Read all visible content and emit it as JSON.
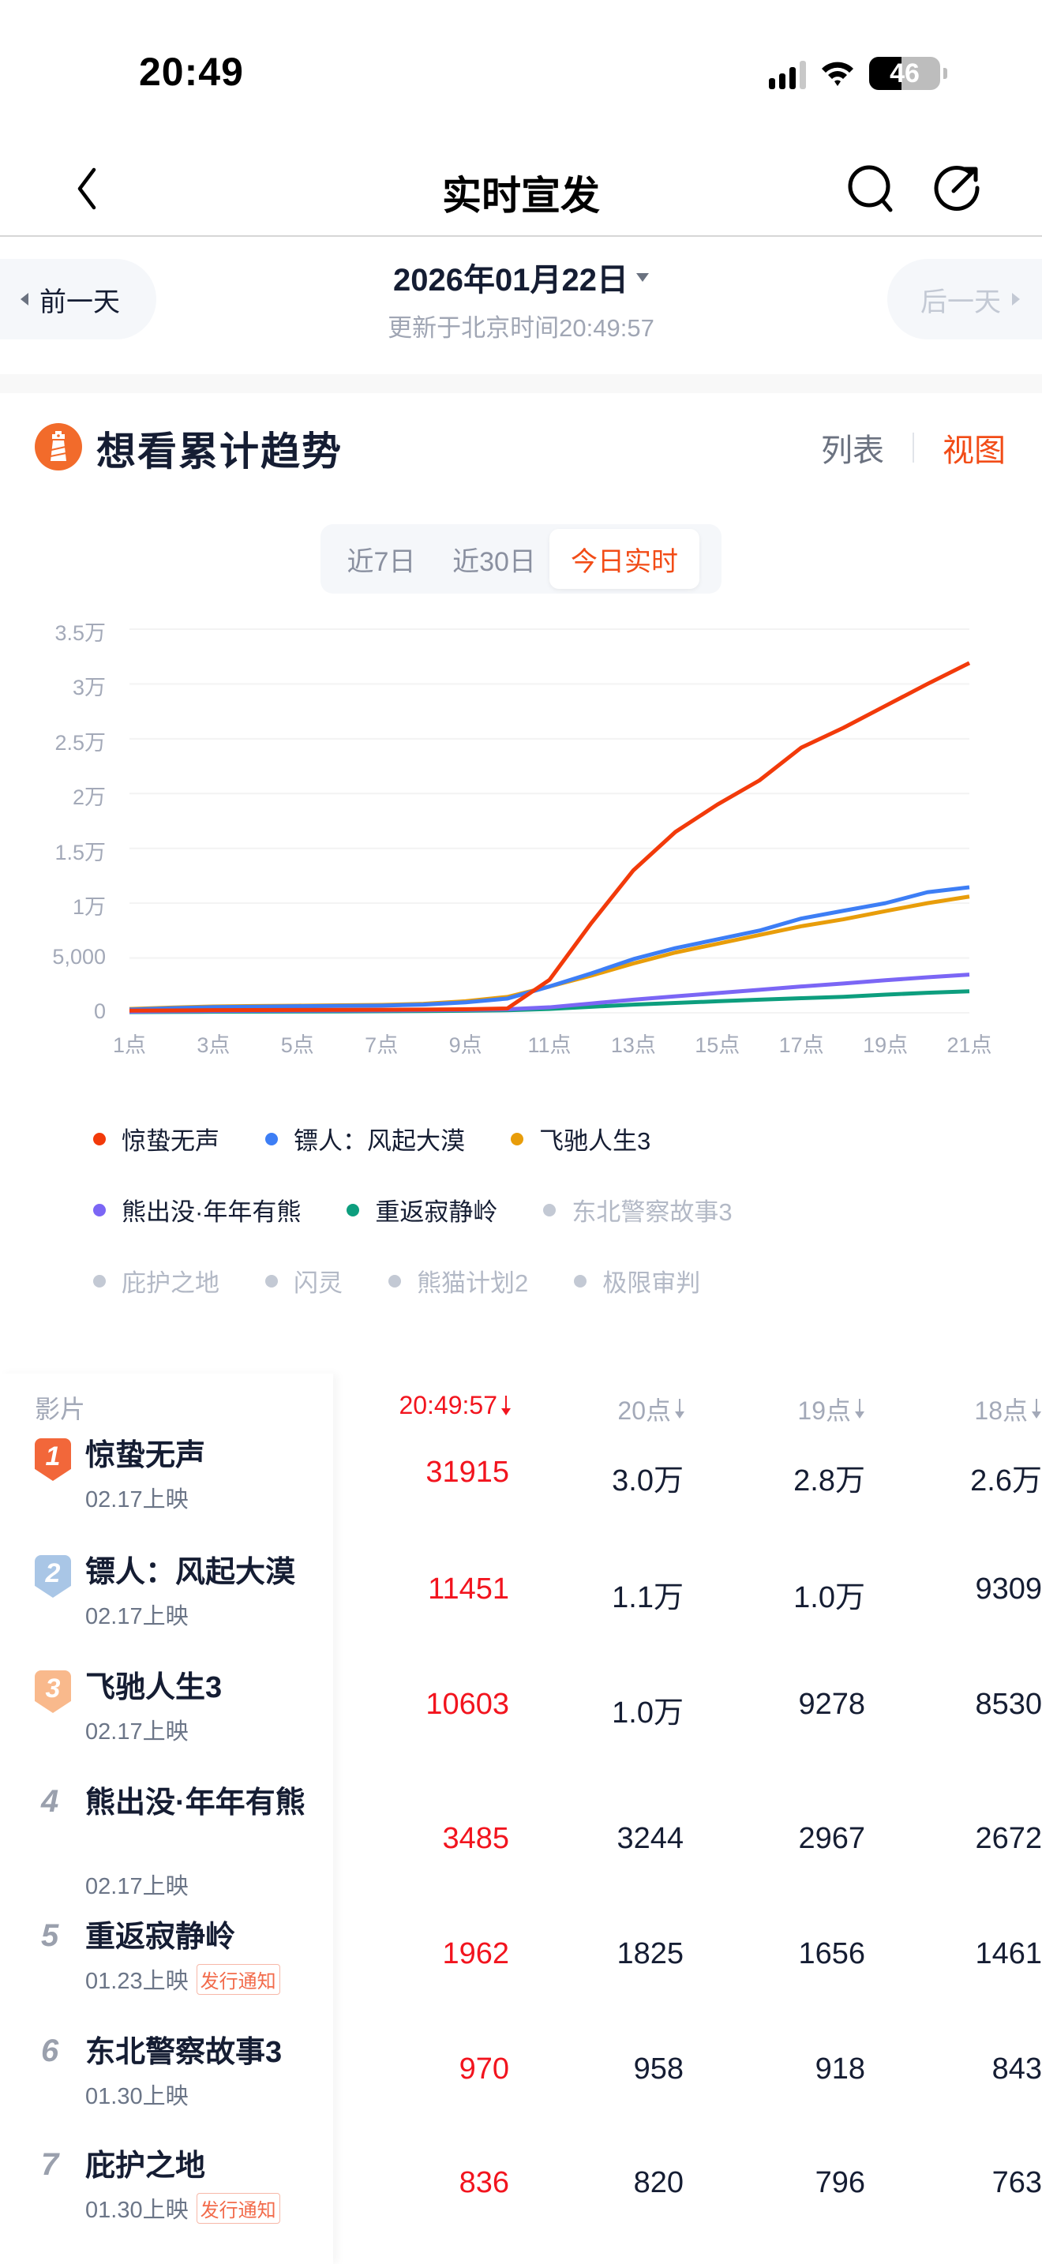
{
  "status_bar": {
    "time": "20:49",
    "battery": "46"
  },
  "nav": {
    "title": "实时宣发",
    "back_icon": "chevron-left-icon",
    "search_icon": "search-icon",
    "share_icon": "share-icon"
  },
  "date_bar": {
    "prev_label": "前一天",
    "next_label": "后一天",
    "date": "2026年01月22日",
    "updated": "更新于北京时间20:49:57"
  },
  "section": {
    "title": "想看累计趋势",
    "icon": "lighthouse-icon",
    "view_list": "列表",
    "view_chart": "视图"
  },
  "range_tabs": [
    {
      "label": "近7日",
      "active": false
    },
    {
      "label": "近30日",
      "active": false
    },
    {
      "label": "今日实时",
      "active": true
    }
  ],
  "legend": [
    {
      "label": "惊蛰无声",
      "color": "#f23a0a",
      "active": true
    },
    {
      "label": "镖人：风起大漠",
      "color": "#3d7ef5",
      "active": true
    },
    {
      "label": "飞驰人生3",
      "color": "#e89d0a",
      "active": true
    },
    {
      "label": "熊出没·年年有熊",
      "color": "#7b66f5",
      "active": true
    },
    {
      "label": "重返寂静岭",
      "color": "#0d9e7e",
      "active": true
    },
    {
      "label": "东北警察故事3",
      "color": "#c3c9d4",
      "active": false
    },
    {
      "label": "庇护之地",
      "color": "#c3c9d4",
      "active": false
    },
    {
      "label": "闪灵",
      "color": "#c3c9d4",
      "active": false
    },
    {
      "label": "熊猫计划2",
      "color": "#c3c9d4",
      "active": false
    },
    {
      "label": "极限审判",
      "color": "#c3c9d4",
      "active": false
    }
  ],
  "chart_data": {
    "type": "line",
    "title": "想看累计趋势",
    "xlabel": "",
    "ylabel": "",
    "x": [
      "1点",
      "2点",
      "3点",
      "4点",
      "5点",
      "6点",
      "7点",
      "8点",
      "9点",
      "10点",
      "11点",
      "12点",
      "13点",
      "14点",
      "15点",
      "16点",
      "17点",
      "18点",
      "19点",
      "20点",
      "21点"
    ],
    "x_tick_labels": [
      "1点",
      "3点",
      "5点",
      "7点",
      "9点",
      "11点",
      "13点",
      "15点",
      "17点",
      "19点",
      "21点"
    ],
    "y_tick_labels": [
      "0",
      "5,000",
      "1万",
      "1.5万",
      "2万",
      "2.5万",
      "3万",
      "3.5万"
    ],
    "ylim": [
      0,
      35000
    ],
    "grid": true,
    "legend_position": "bottom",
    "series": [
      {
        "name": "惊蛰无声",
        "color": "#f23a0a",
        "values": [
          200,
          220,
          240,
          250,
          260,
          270,
          280,
          300,
          320,
          400,
          3000,
          8200,
          13000,
          16500,
          19000,
          21200,
          24200,
          26000,
          28000,
          30000,
          31915
        ]
      },
      {
        "name": "镖人：风起大漠",
        "color": "#3d7ef5",
        "values": [
          300,
          420,
          520,
          560,
          600,
          630,
          660,
          750,
          950,
          1300,
          2400,
          3600,
          4900,
          5900,
          6700,
          7500,
          8600,
          9309,
          10000,
          11000,
          11451
        ]
      },
      {
        "name": "飞驰人生3",
        "color": "#e89d0a",
        "values": [
          350,
          480,
          580,
          620,
          650,
          680,
          720,
          820,
          1050,
          1450,
          2400,
          3400,
          4500,
          5500,
          6300,
          7100,
          7900,
          8530,
          9278,
          10000,
          10603
        ]
      },
      {
        "name": "熊出没·年年有熊",
        "color": "#7b66f5",
        "values": [
          100,
          140,
          170,
          190,
          200,
          210,
          220,
          240,
          270,
          320,
          500,
          850,
          1200,
          1500,
          1800,
          2100,
          2400,
          2672,
          2967,
          3244,
          3485
        ]
      },
      {
        "name": "重返寂静岭",
        "color": "#0d9e7e",
        "values": [
          60,
          80,
          100,
          110,
          120,
          130,
          140,
          160,
          190,
          230,
          350,
          550,
          750,
          900,
          1050,
          1200,
          1330,
          1461,
          1656,
          1825,
          1962
        ]
      }
    ]
  },
  "table": {
    "headers": {
      "film": "影片",
      "cols": [
        "20:49:57",
        "20点",
        "19点",
        "18点"
      ]
    },
    "rows": [
      {
        "rank": "1",
        "name": "惊蛰无声",
        "date": "02.17上映",
        "tag": "",
        "values": [
          "31915",
          "3.0万",
          "2.8万",
          "2.6万"
        ]
      },
      {
        "rank": "2",
        "name": "镖人：风起大漠",
        "date": "02.17上映",
        "tag": "",
        "values": [
          "11451",
          "1.1万",
          "1.0万",
          "9309"
        ]
      },
      {
        "rank": "3",
        "name": "飞驰人生3",
        "date": "02.17上映",
        "tag": "",
        "values": [
          "10603",
          "1.0万",
          "9278",
          "8530"
        ]
      },
      {
        "rank": "4",
        "name": "熊出没·年年有熊",
        "date": "02.17上映",
        "tag": "",
        "values": [
          "3485",
          "3244",
          "2967",
          "2672"
        ]
      },
      {
        "rank": "5",
        "name": "重返寂静岭",
        "date": "01.23上映",
        "tag": "发行通知",
        "values": [
          "1962",
          "1825",
          "1656",
          "1461"
        ]
      },
      {
        "rank": "6",
        "name": "东北警察故事3",
        "date": "01.30上映",
        "tag": "",
        "values": [
          "970",
          "958",
          "918",
          "843"
        ]
      },
      {
        "rank": "7",
        "name": "庇护之地",
        "date": "01.30上映",
        "tag": "发行通知",
        "values": [
          "836",
          "820",
          "796",
          "763"
        ]
      }
    ]
  }
}
